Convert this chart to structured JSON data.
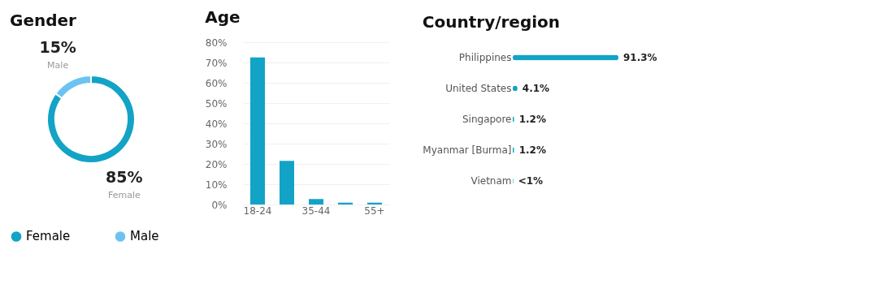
{
  "chart_data": [
    {
      "type": "donut",
      "title": "Gender",
      "categories": [
        "Female",
        "Male"
      ],
      "values": [
        85,
        15
      ],
      "colors": [
        "#12a3c6",
        "#6cc3f2"
      ],
      "value_labels": [
        "85%",
        "15%"
      ],
      "legend": "bottom"
    },
    {
      "type": "bar",
      "title": "Age",
      "categories": [
        "18-24",
        null,
        "35-44",
        null,
        "55+"
      ],
      "values": [
        72.5,
        21.5,
        2.7,
        0.9,
        0.9
      ],
      "color": "#12a3c6",
      "ylim": [
        0,
        80
      ],
      "yticks": [
        {
          "value": 0,
          "label": "0%"
        },
        {
          "value": 10,
          "label": "10%"
        },
        {
          "value": 20,
          "label": "20%"
        },
        {
          "value": 30,
          "label": "30%"
        },
        {
          "value": 40,
          "label": "40%"
        },
        {
          "value": 50,
          "label": "50%"
        },
        {
          "value": 60,
          "label": "60%"
        },
        {
          "value": 70,
          "label": "70%"
        },
        {
          "value": 80,
          "label": "80%"
        }
      ],
      "grid": "y"
    },
    {
      "type": "bar",
      "orientation": "horizontal",
      "title": "Country/region",
      "categories": [
        "Philippines",
        "United States",
        "Singapore",
        "Myanmar [Burma]",
        "Vietnam"
      ],
      "values": [
        91.3,
        4.1,
        1.2,
        1.2,
        0.5
      ],
      "color": "#12a3c6",
      "value_labels": [
        "91.3%",
        "4.1%",
        "1.2%",
        "1.2%",
        "<1%"
      ],
      "tick_labels": "y"
    }
  ]
}
